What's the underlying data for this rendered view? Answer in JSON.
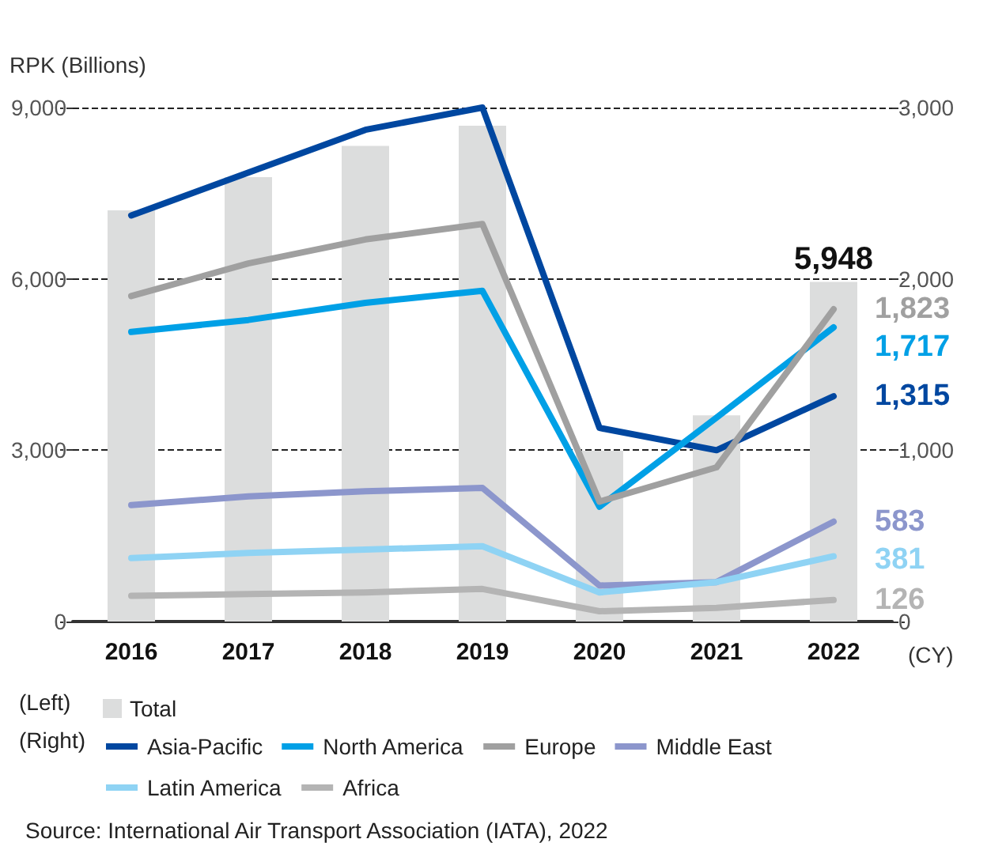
{
  "chart_data": {
    "type": "line",
    "ylabel": "RPK (Billions)",
    "xlabel": "(CY)",
    "categories": [
      "2016",
      "2017",
      "2018",
      "2019",
      "2020",
      "2021",
      "2022"
    ],
    "series": [
      {
        "name": "Total",
        "type": "bar",
        "color": "#dcdddd",
        "values": [
          7200,
          7780,
          8330,
          8680,
          2990,
          3610,
          5948
        ],
        "value_labels": [
          null,
          null,
          null,
          null,
          null,
          null,
          "5,948"
        ]
      },
      {
        "name": "Asia-Pacific",
        "axis": "y2",
        "color": "#0047a0",
        "values": [
          2370,
          2620,
          2870,
          3000,
          1130,
          1000,
          1315
        ],
        "value_labels": [
          null,
          null,
          null,
          null,
          null,
          null,
          "1,315"
        ]
      },
      {
        "name": "North America",
        "axis": "y2",
        "color": "#00a0e6",
        "values": [
          1690,
          1760,
          1860,
          1930,
          670,
          1190,
          1717
        ],
        "value_labels": [
          null,
          null,
          null,
          null,
          null,
          null,
          "1,717"
        ]
      },
      {
        "name": "Europe",
        "axis": "y2",
        "color": "#a0a0a0",
        "values": [
          1900,
          2090,
          2230,
          2320,
          700,
          900,
          1823
        ],
        "value_labels": [
          null,
          null,
          null,
          null,
          null,
          null,
          "1,823"
        ]
      },
      {
        "name": "Middle East",
        "axis": "y2",
        "color": "#8c96cc",
        "values": [
          680,
          730,
          760,
          780,
          210,
          230,
          583
        ],
        "value_labels": [
          null,
          null,
          null,
          null,
          null,
          null,
          "583"
        ]
      },
      {
        "name": "Latin America",
        "axis": "y2",
        "color": "#8fd3f4",
        "values": [
          370,
          400,
          420,
          440,
          170,
          230,
          381
        ],
        "value_labels": [
          null,
          null,
          null,
          null,
          null,
          null,
          "381"
        ]
      },
      {
        "name": "Africa",
        "axis": "y2",
        "color": "#b4b4b4",
        "values": [
          150,
          160,
          170,
          190,
          60,
          80,
          126
        ],
        "value_labels": [
          null,
          null,
          null,
          null,
          null,
          null,
          "126"
        ]
      }
    ],
    "ylim": [
      0,
      9000
    ],
    "yticks": [
      {
        "value": 0,
        "label": "0"
      },
      {
        "value": 3000,
        "label": "3,000"
      },
      {
        "value": 6000,
        "label": "6,000"
      },
      {
        "value": 9000,
        "label": "9,000"
      }
    ],
    "y2lim": [
      0,
      3000
    ],
    "y2ticks": [
      {
        "value": 0,
        "label": "0"
      },
      {
        "value": 1000,
        "label": "1,000"
      },
      {
        "value": 2000,
        "label": "2,000"
      },
      {
        "value": 3000,
        "label": "3,000"
      }
    ],
    "grid": "y",
    "legend": "bottom",
    "marker": "none",
    "line_style": "solid",
    "annotations": [
      "(Left)",
      "(Right)",
      "Source: International Air Transport Association (IATA), 2022"
    ]
  }
}
